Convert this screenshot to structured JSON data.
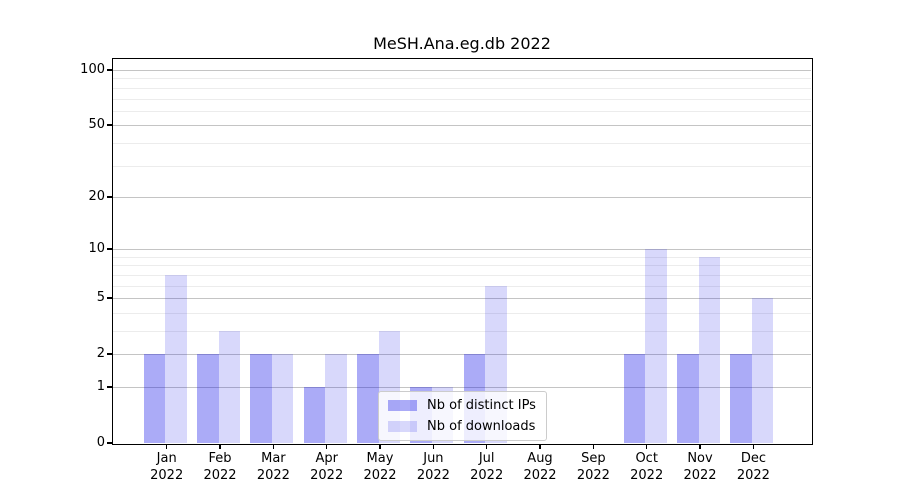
{
  "title": "MeSH.Ana.eg.db 2022",
  "colors": {
    "bar_distinct_ips_fill": "rgba(8,8,232,0.34)",
    "bar_distinct_ips_hex": "#ababf7",
    "bar_downloads_fill": "rgba(8,8,232,0.155)",
    "bar_downloads_hex": "#d9d9f9",
    "grid_major": "#c4c4c4",
    "grid_minor": "#ececec",
    "axis": "#000000"
  },
  "legend": {
    "items": [
      {
        "label": "Nb of distinct IPs",
        "color_hex": "#ababf7"
      },
      {
        "label": "Nb of downloads",
        "color_hex": "#d9d9f9"
      }
    ]
  },
  "chart_data": {
    "type": "bar",
    "title": "MeSH.Ana.eg.db 2022",
    "categories": [
      "Jan 2022",
      "Feb 2022",
      "Mar 2022",
      "Apr 2022",
      "May 2022",
      "Jun 2022",
      "Jul 2022",
      "Aug 2022",
      "Sep 2022",
      "Oct 2022",
      "Nov 2022",
      "Dec 2022"
    ],
    "series": [
      {
        "name": "Nb of distinct IPs",
        "fill": "rgba(8,8,232,0.34)",
        "values": [
          2,
          2,
          2,
          1,
          2,
          1,
          2,
          0,
          0,
          2,
          2,
          2
        ]
      },
      {
        "name": "Nb of downloads",
        "fill": "rgba(8,8,232,0.155)",
        "values": [
          7,
          3,
          2,
          2,
          3,
          1,
          6,
          0,
          0,
          10,
          9,
          5
        ]
      }
    ],
    "xlabel": "",
    "ylabel": "",
    "yscale": "log1p",
    "ylim": [
      0,
      115
    ],
    "y_major_ticks": [
      0,
      1,
      2,
      5,
      10,
      20,
      50,
      100
    ],
    "y_minor_gridlines": [
      3,
      4,
      6,
      7,
      8,
      9,
      30,
      40,
      60,
      70,
      80,
      90
    ],
    "grid": "horizontal",
    "legend_position": "lower center"
  }
}
